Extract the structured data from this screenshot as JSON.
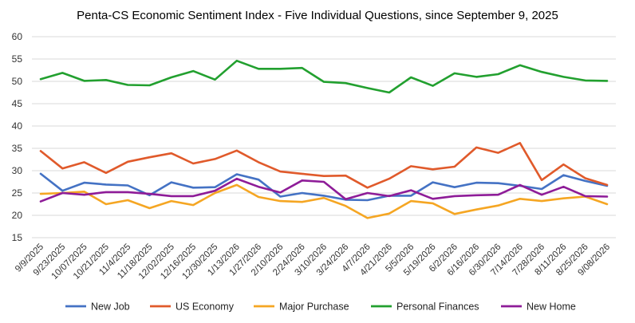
{
  "chart_data": {
    "type": "line",
    "title": "Penta-CS Economic Sentiment Index - Five Individual Questions, since September 9, 2025",
    "xlabel": "",
    "ylabel": "",
    "ylim": [
      15,
      60
    ],
    "yticks": [
      15,
      20,
      25,
      30,
      35,
      40,
      45,
      50,
      55,
      60
    ],
    "grid": true,
    "legend_position": "bottom",
    "categories": [
      "9/9/2025",
      "9/23/2025",
      "10/07/2025",
      "10/21/2025",
      "11/4/2025",
      "11/18/2025",
      "12/02/2025",
      "12/16/2025",
      "12/30/2025",
      "1/13/2026",
      "1/27/2026",
      "2/10/2026",
      "2/24/2026",
      "3/10/2026",
      "3/24/2026",
      "4/7/2026",
      "4/21/2026",
      "5/5/2026",
      "5/19/2026",
      "6/2/2026",
      "6/16/2026",
      "6/30/2026",
      "7/14/2026",
      "7/28/2026",
      "8/11/2026",
      "8/25/2026",
      "9/08/2026"
    ],
    "series": [
      {
        "name": "New Job",
        "color": "#4472C4",
        "values": [
          29.3,
          25.5,
          27.3,
          26.9,
          26.7,
          24.5,
          27.4,
          26.2,
          26.3,
          29.2,
          28.0,
          24.2,
          25.0,
          24.4,
          23.5,
          23.4,
          24.4,
          24.4,
          27.4,
          26.3,
          27.3,
          27.2,
          26.6,
          25.9,
          29.0,
          27.7,
          26.6
        ]
      },
      {
        "name": "US Economy",
        "color": "#E05A2B",
        "values": [
          34.4,
          30.5,
          31.9,
          29.5,
          32.0,
          33.0,
          33.9,
          31.6,
          32.6,
          34.5,
          31.9,
          29.8,
          29.3,
          28.8,
          28.9,
          26.2,
          28.2,
          31.0,
          30.3,
          30.9,
          35.2,
          34.0,
          36.2,
          27.9,
          31.4,
          28.3,
          26.8
        ]
      },
      {
        "name": "Major Purchase",
        "color": "#F5A623",
        "values": [
          24.8,
          25.0,
          25.3,
          22.5,
          23.4,
          21.6,
          23.2,
          22.3,
          25.0,
          26.8,
          24.1,
          23.2,
          23.0,
          23.9,
          22.1,
          19.4,
          20.4,
          23.2,
          22.7,
          20.3,
          21.3,
          22.2,
          23.7,
          23.2,
          23.8,
          24.2,
          22.5
        ]
      },
      {
        "name": "Personal Finances",
        "color": "#22A02F",
        "values": [
          50.5,
          51.9,
          50.1,
          50.3,
          49.2,
          49.1,
          50.9,
          52.3,
          50.4,
          54.6,
          52.8,
          52.8,
          53.0,
          49.9,
          49.6,
          48.5,
          47.5,
          50.9,
          49.0,
          51.8,
          51.0,
          51.6,
          53.6,
          52.1,
          51.0,
          50.2,
          50.1
        ]
      },
      {
        "name": "New Home",
        "color": "#8E1C98",
        "values": [
          23.1,
          25.0,
          24.6,
          25.2,
          25.2,
          24.8,
          24.3,
          24.3,
          25.5,
          28.2,
          26.4,
          25.1,
          27.8,
          27.5,
          23.6,
          25.0,
          24.3,
          25.6,
          23.7,
          24.3,
          24.5,
          24.6,
          26.8,
          24.6,
          26.4,
          24.3,
          24.2
        ]
      }
    ]
  }
}
